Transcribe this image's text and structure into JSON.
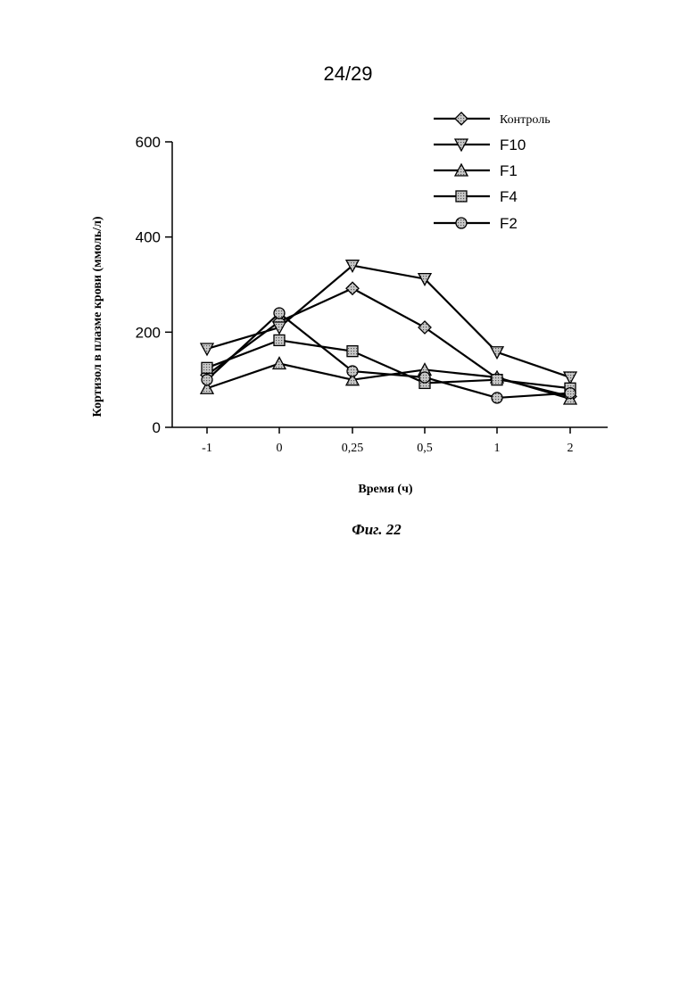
{
  "page_number": "24/29",
  "caption": "Фиг. 22",
  "chart_data": {
    "type": "line",
    "categories": [
      "-1",
      "0",
      "0,25",
      "0,5",
      "1",
      "2"
    ],
    "ylabel": "Кортизол в плазме крови (ммоль/л)",
    "xlabel": "Время (ч)",
    "ylim": [
      0,
      600
    ],
    "yticks": [
      0,
      200,
      400,
      600
    ],
    "legend_position": "top-right",
    "series": [
      {
        "name": "Контроль",
        "marker": "diamond",
        "values": [
          110,
          222,
          292,
          210,
          103,
          65
        ]
      },
      {
        "name": "F10",
        "marker": "triangle-down",
        "values": [
          165,
          210,
          340,
          312,
          158,
          105
        ]
      },
      {
        "name": "F1",
        "marker": "triangle-up",
        "values": [
          82,
          134,
          100,
          121,
          105,
          60
        ]
      },
      {
        "name": "F4",
        "marker": "square",
        "values": [
          125,
          183,
          160,
          93,
          100,
          82
        ]
      },
      {
        "name": "F2",
        "marker": "circle",
        "values": [
          100,
          240,
          118,
          105,
          62,
          72
        ]
      }
    ]
  }
}
